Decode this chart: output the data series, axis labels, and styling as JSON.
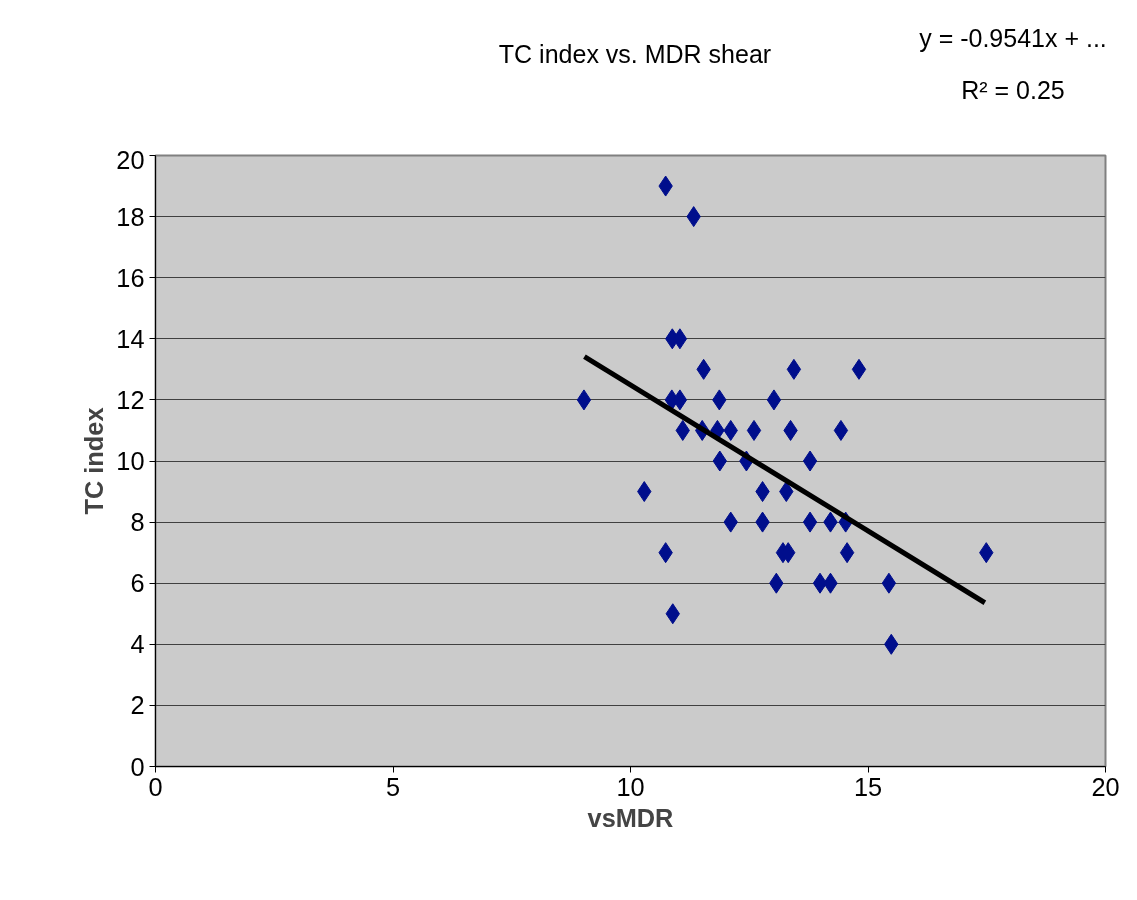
{
  "chart_data": {
    "type": "scatter",
    "title": "TC index vs. MDR shear",
    "xlabel": "vsMDR",
    "ylabel": "TC index",
    "annotations": [
      "y = -0.9541x + ...",
      "R² = 0.25"
    ],
    "xlim": [
      0,
      20
    ],
    "xticks": [
      0,
      5,
      10,
      15,
      20
    ],
    "ylim": [
      0,
      20
    ],
    "yticks": [
      0,
      2,
      4,
      6,
      8,
      10,
      12,
      14,
      16,
      18,
      20
    ],
    "grid": "y",
    "marker": "diamond",
    "series": [
      {
        "color": "#000e8c",
        "x": [
          10.74,
          11.33,
          10.88,
          11.04,
          11.54,
          13.44,
          14.81,
          9.02,
          10.87,
          11.04,
          11.87,
          13.02,
          11.1,
          11.51,
          11.83,
          12.11,
          12.6,
          13.37,
          14.43,
          11.88,
          12.44,
          13.78,
          10.29,
          12.78,
          13.28,
          12.11,
          12.78,
          13.78,
          14.21,
          14.53,
          10.74,
          13.21,
          13.32,
          14.56,
          13.07,
          13.99,
          14.21,
          15.44,
          10.89,
          15.49,
          17.49
        ],
        "values": [
          19,
          18,
          14,
          14,
          13,
          13,
          13,
          12,
          12,
          12,
          12,
          12,
          11,
          11,
          11,
          11,
          11,
          11,
          11,
          10,
          10,
          10,
          9,
          9,
          9,
          8,
          8,
          8,
          8,
          8,
          7,
          7,
          7,
          7,
          6,
          6,
          6,
          6,
          5,
          4,
          7
        ]
      },
      {
        "type": "line",
        "marker": "none",
        "color": "#000000",
        "x": [
          9.03,
          17.46
        ],
        "values": [
          13.42,
          5.36
        ]
      }
    ]
  }
}
